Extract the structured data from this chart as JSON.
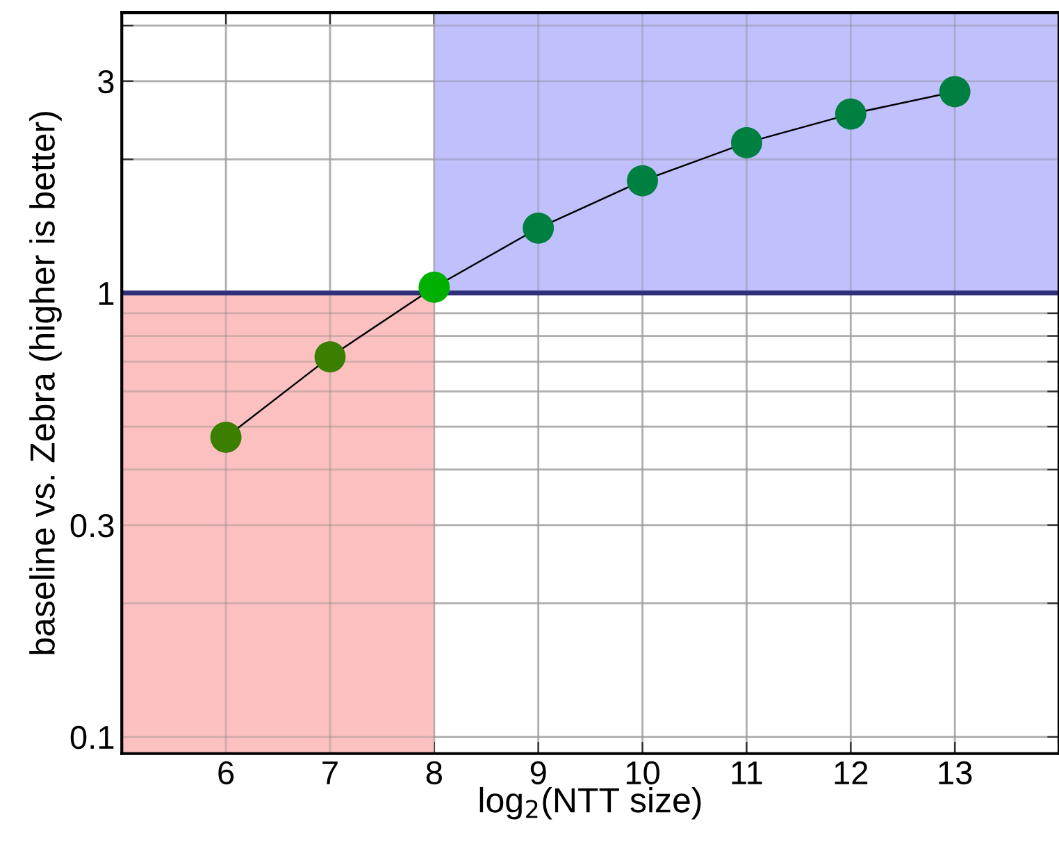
{
  "chart_data": {
    "type": "line",
    "xlabel": "log$_{2}$(NTT size)",
    "ylabel": "baseline vs. Zebra (higher is better)",
    "x": [
      6,
      7,
      8,
      9,
      10,
      11,
      12,
      13
    ],
    "series": [
      {
        "color": "#000000",
        "values": [
          0.473,
          0.718,
          1.03,
          1.4,
          1.79,
          2.18,
          2.53,
          2.84
        ],
        "colors": [
          "#3a7f00",
          "#3a7f00",
          "#00b000",
          "#008040",
          "#008040",
          "#008040",
          "#008040",
          "#008040"
        ]
      }
    ],
    "marker": "circle",
    "line_style": "solid",
    "log": "y",
    "xlim": [
      5,
      14
    ],
    "xticks": [
      6,
      7,
      8,
      9,
      10,
      11,
      12,
      13
    ],
    "ylim": [
      0.0917,
      4.28
    ],
    "yticks": [
      0.1,
      {
        "value": 0.2,
        "label": null
      },
      0.3,
      {
        "value": 0.4,
        "label": null
      },
      {
        "value": 0.5,
        "label": null
      },
      {
        "value": 0.6,
        "label": null
      },
      {
        "value": 0.7,
        "label": null
      },
      {
        "value": 0.8,
        "label": null
      },
      {
        "value": 0.9,
        "label": null
      },
      1,
      {
        "value": 2,
        "label": null
      },
      3,
      {
        "value": 4,
        "label": null
      }
    ],
    "grid": true,
    "ref_lines": [
      {
        "axis": "y",
        "value": 1,
        "color": "#30307a"
      }
    ],
    "bands": [
      {
        "axis": "x",
        "from": 5,
        "to": 8,
        "color": "#fcc0c0"
      },
      {
        "axis": "x",
        "from": 8,
        "to": 14,
        "color": "#c0c0fc"
      }
    ]
  }
}
